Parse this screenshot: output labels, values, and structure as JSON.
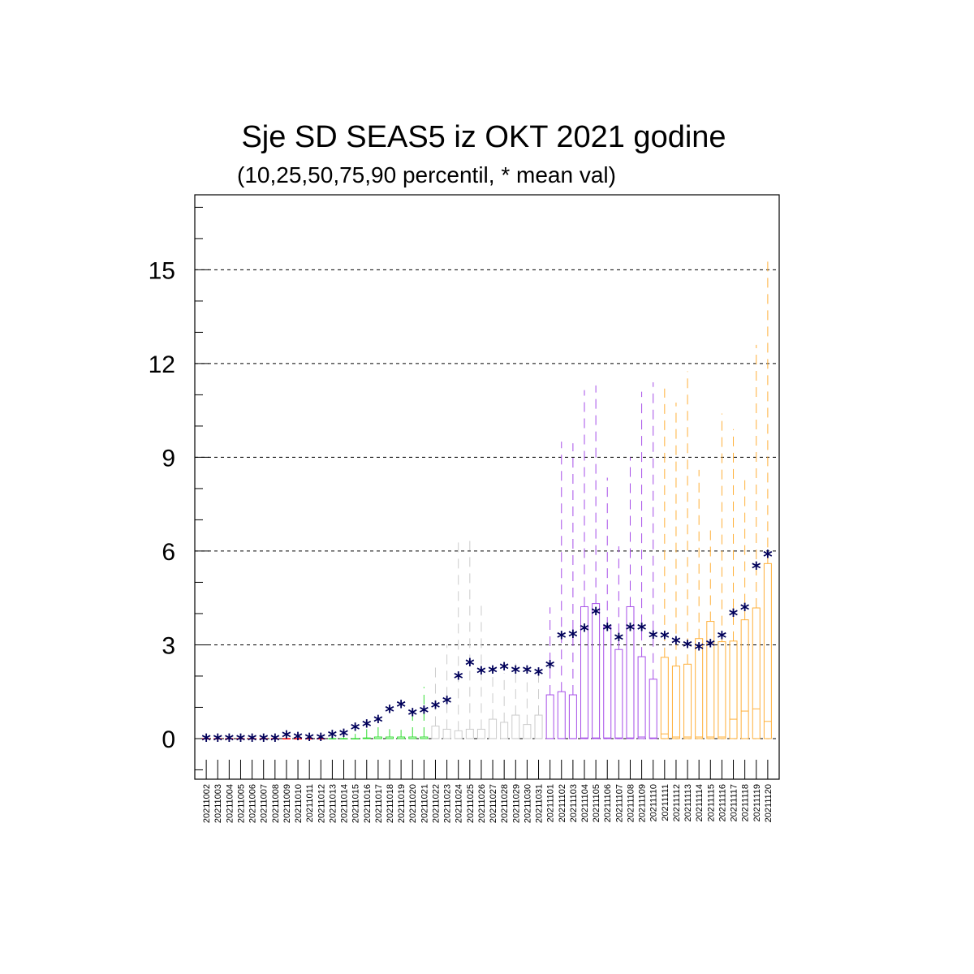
{
  "chart_data": {
    "type": "boxplot",
    "title": "Sje SD SEAS5 iz OKT 2021 godine",
    "subtitle": "(10,25,50,75,90 percentil, * mean val)",
    "xlabel": "",
    "ylabel": "",
    "ylim": [
      -1.3,
      17.4
    ],
    "yticks": [
      0,
      3,
      6,
      9,
      12,
      15
    ],
    "grid": "horizontal-dashed",
    "mean_marker": "*",
    "colors": {
      "mean": "#00005a",
      "grid": "#000000",
      "group1": "#ff0000",
      "group2": "#33dd33",
      "group3": "#cccccc",
      "group4": "#a64ee8",
      "group5": "#ffb03a"
    },
    "categories": [
      "20211002",
      "20211003",
      "20211004",
      "20211005",
      "20211006",
      "20211007",
      "20211008",
      "20211009",
      "20211010",
      "20211011",
      "20211012",
      "20211013",
      "20211014",
      "20211015",
      "20211016",
      "20211017",
      "20211018",
      "20211019",
      "20211020",
      "20211021",
      "20211022",
      "20211023",
      "20211024",
      "20211025",
      "20211026",
      "20211027",
      "20211028",
      "20211029",
      "20211030",
      "20211031",
      "20211101",
      "20211102",
      "20211103",
      "20211104",
      "20211105",
      "20211106",
      "20211107",
      "20211108",
      "20211109",
      "20211110",
      "20211111",
      "20211112",
      "20211113",
      "20211114",
      "20211115",
      "20211116",
      "20211117",
      "20211118",
      "20211119",
      "20211120"
    ],
    "groups": [
      1,
      1,
      1,
      1,
      1,
      1,
      1,
      1,
      1,
      1,
      1,
      2,
      2,
      2,
      2,
      2,
      2,
      2,
      2,
      2,
      3,
      3,
      3,
      3,
      3,
      3,
      3,
      3,
      3,
      3,
      4,
      4,
      4,
      4,
      4,
      4,
      4,
      4,
      4,
      4,
      5,
      5,
      5,
      5,
      5,
      5,
      5,
      5,
      5,
      5
    ],
    "p10": [
      0,
      0,
      0,
      0,
      0,
      0,
      0,
      0,
      0,
      0,
      0,
      0,
      0,
      0,
      0,
      0,
      0,
      0,
      0,
      0,
      0,
      0,
      0,
      0,
      0,
      0,
      0,
      0,
      0,
      0,
      0,
      0,
      0,
      0,
      0,
      0,
      0,
      0,
      0,
      0,
      0,
      0,
      0,
      0,
      0,
      0,
      0,
      0,
      0,
      0
    ],
    "p25": [
      0,
      0,
      0,
      0,
      0,
      0,
      0,
      0,
      0,
      0,
      0,
      0,
      0,
      0,
      0,
      0,
      0,
      0,
      0,
      0,
      0,
      0,
      0,
      0,
      0,
      0,
      0,
      0,
      0,
      0,
      0,
      0,
      0,
      0,
      0,
      0,
      0,
      0,
      0,
      0,
      0,
      0,
      0,
      0,
      0,
      0,
      0,
      0,
      0,
      0
    ],
    "p50": [
      0,
      0,
      0,
      0,
      0,
      0,
      0,
      0,
      0,
      0,
      0,
      0,
      0,
      0,
      0,
      0,
      0,
      0,
      0,
      0,
      0,
      0,
      0,
      0,
      0,
      0,
      0,
      0,
      0,
      0,
      0,
      0,
      0,
      0.02,
      0.02,
      0.02,
      0.02,
      0.02,
      0.05,
      0.02,
      0.15,
      0.05,
      0.05,
      0.05,
      0.05,
      0.05,
      0.62,
      0.88,
      0.95,
      0.55
    ],
    "p75": [
      0,
      0,
      0,
      0,
      0,
      0,
      0,
      0,
      0,
      0,
      0,
      0,
      0,
      0,
      0.02,
      0.05,
      0.05,
      0.05,
      0.05,
      0.05,
      0.4,
      0.3,
      0.25,
      0.3,
      0.3,
      0.62,
      0.52,
      0.75,
      0.45,
      0.75,
      1.4,
      1.5,
      1.4,
      4.22,
      4.32,
      3.58,
      2.85,
      4.22,
      2.62,
      1.9,
      2.6,
      2.32,
      2.38,
      3.2,
      3.75,
      3.1,
      3.12,
      3.8,
      4.18,
      5.6
    ],
    "p90": [
      0,
      0,
      0,
      0,
      0,
      0,
      0,
      0,
      0,
      0,
      0,
      0.05,
      0.12,
      0.15,
      0.3,
      0.4,
      0.3,
      0.28,
      0.9,
      1.65,
      2.3,
      3.0,
      6.45,
      6.5,
      4.25,
      2.3,
      2.1,
      2.4,
      2.0,
      2.2,
      4.2,
      9.5,
      9.45,
      11.15,
      11.3,
      8.35,
      6.15,
      9.0,
      11.1,
      11.4,
      11.2,
      10.75,
      11.75,
      8.6,
      6.8,
      10.4,
      9.9,
      8.3,
      12.6,
      15.45
    ],
    "mean": [
      0,
      0,
      0,
      0,
      0,
      0,
      0,
      0.1,
      0.05,
      0.03,
      0.02,
      0.12,
      0.15,
      0.35,
      0.45,
      0.6,
      0.92,
      1.08,
      0.82,
      0.9,
      1.05,
      1.2,
      1.98,
      2.42,
      2.15,
      2.18,
      2.28,
      2.18,
      2.18,
      2.12,
      2.35,
      3.28,
      3.32,
      3.52,
      4.05,
      3.55,
      3.22,
      3.55,
      3.55,
      3.3,
      3.28,
      3.12,
      3.0,
      2.92,
      3.02,
      3.28,
      4.0,
      4.18,
      5.5,
      5.88
    ]
  }
}
